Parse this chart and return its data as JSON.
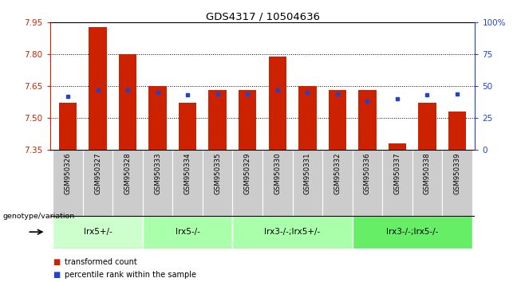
{
  "title": "GDS4317 / 10504636",
  "samples": [
    "GSM950326",
    "GSM950327",
    "GSM950328",
    "GSM950333",
    "GSM950334",
    "GSM950335",
    "GSM950329",
    "GSM950330",
    "GSM950331",
    "GSM950332",
    "GSM950336",
    "GSM950337",
    "GSM950338",
    "GSM950339"
  ],
  "red_values": [
    7.57,
    7.93,
    7.8,
    7.65,
    7.57,
    7.63,
    7.63,
    7.79,
    7.65,
    7.63,
    7.63,
    7.38,
    7.57,
    7.53
  ],
  "blue_values": [
    42,
    47,
    47,
    45,
    43,
    44,
    44,
    47,
    45,
    44,
    38,
    40,
    43,
    44
  ],
  "y_min": 7.35,
  "y_max": 7.95,
  "y_ticks": [
    7.35,
    7.5,
    7.65,
    7.8,
    7.95
  ],
  "y2_ticks": [
    0,
    25,
    50,
    75,
    100
  ],
  "bar_color": "#cc2200",
  "blue_color": "#2244cc",
  "bg_color": "#ffffff",
  "groups": [
    {
      "label": "lrx5+/-",
      "start": 0,
      "end": 3
    },
    {
      "label": "lrx5-/-",
      "start": 3,
      "end": 6
    },
    {
      "label": "lrx3-/-;lrx5+/-",
      "start": 6,
      "end": 10
    },
    {
      "label": "lrx3-/-;lrx5-/-",
      "start": 10,
      "end": 14
    }
  ],
  "group_colors": [
    "#ccffcc",
    "#aaffaa",
    "#aaffaa",
    "#66ee66"
  ],
  "legend_red": "transformed count",
  "legend_blue": "percentile rank within the sample",
  "genotype_label": "genotype/variation"
}
